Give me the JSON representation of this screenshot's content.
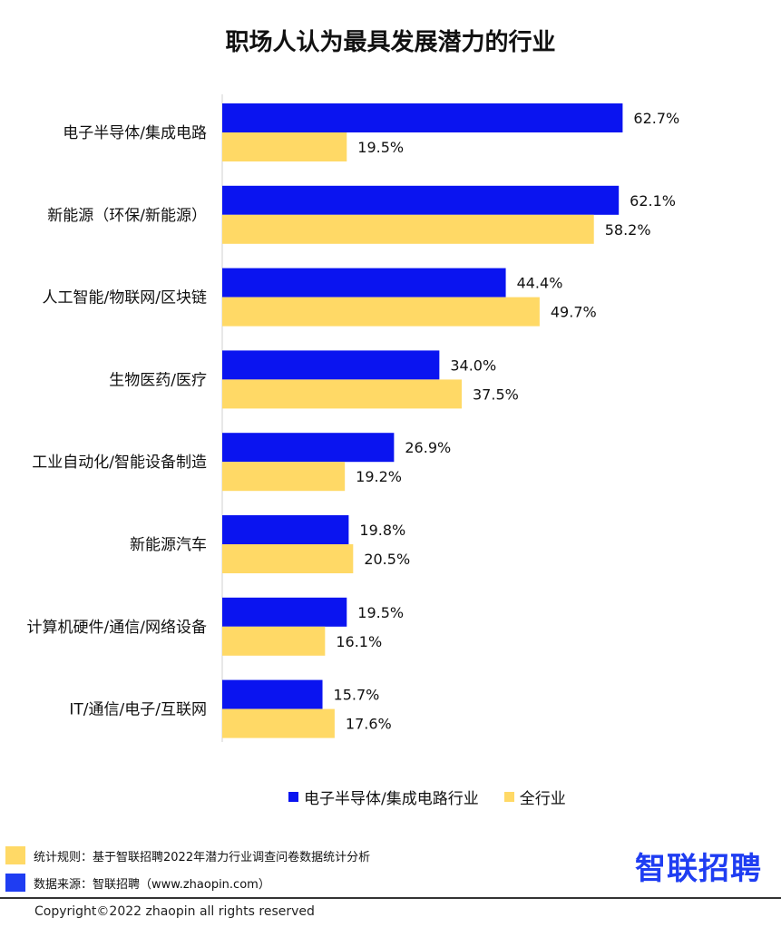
{
  "chart_data": {
    "type": "bar",
    "orientation": "horizontal",
    "title": "职场人认为最具发展潜力的行业",
    "categories": [
      "电子半导体/集成电路",
      "新能源（环保/新能源）",
      "人工智能/物联网/区块链",
      "生物医药/医疗",
      "工业自动化/智能设备制造",
      "新能源汽车",
      "计算机硬件/通信/网络设备",
      "IT/通信/电子/互联网"
    ],
    "series": [
      {
        "name": "电子半导体/集成电路行业",
        "color": "#0a14f0",
        "values": [
          62.7,
          62.1,
          44.4,
          34.0,
          26.9,
          19.8,
          19.5,
          15.7
        ]
      },
      {
        "name": "全行业",
        "color": "#ffd966",
        "values": [
          19.5,
          58.2,
          49.7,
          37.5,
          19.2,
          20.5,
          16.1,
          17.6
        ]
      }
    ],
    "value_suffix": "%",
    "xlim": [
      0,
      100
    ],
    "grid": false,
    "legend_position": "bottom"
  },
  "notes": [
    {
      "text": "统计规则：基于智联招聘2022年潜力行业调查问卷数据统计分析",
      "color": "#ffd966"
    },
    {
      "text": "数据来源：智联招聘（www.zhaopin.com）",
      "color": "#1f3df2"
    }
  ],
  "logo_text": "智联招聘",
  "copyright": "Copyright©2022 zhaopin all rights reserved"
}
